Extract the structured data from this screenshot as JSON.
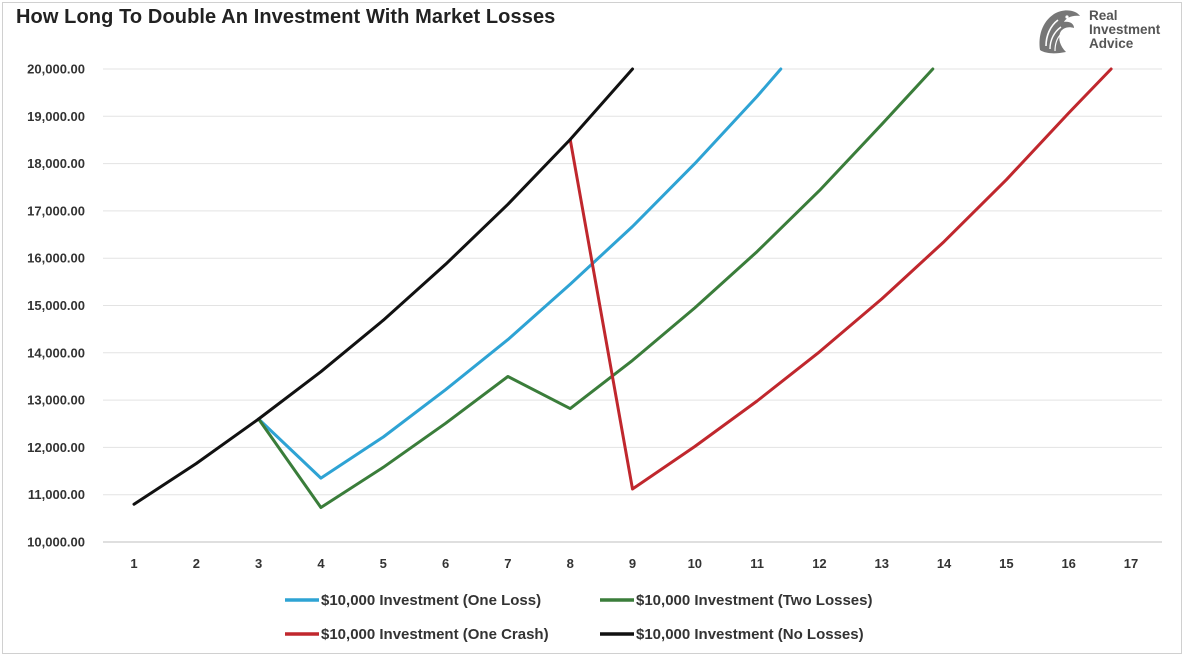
{
  "title": "How Long To Double An Investment With Market Losses",
  "logo": {
    "line1": "Real",
    "line2": "Investment",
    "line3": "Advice",
    "icon": "eagle-head-icon"
  },
  "chart_data": {
    "type": "line",
    "title": "How Long To Double An Investment With Market Losses",
    "xlabel": "",
    "ylabel": "",
    "x": [
      1,
      2,
      3,
      4,
      5,
      6,
      7,
      8,
      9,
      10,
      11,
      12,
      13,
      14,
      15,
      16,
      17
    ],
    "ylim": [
      10000,
      20000
    ],
    "yticks": [
      "10,000.00",
      "11,000.00",
      "12,000.00",
      "13,000.00",
      "14,000.00",
      "15,000.00",
      "16,000.00",
      "17,000.00",
      "18,000.00",
      "19,000.00",
      "20,000.00"
    ],
    "grid": true,
    "legend_position": "bottom",
    "series": [
      {
        "name": "$10,000 Investment (One Loss)",
        "color": "#2ea3d4",
        "x": [
          3,
          4,
          5,
          6,
          7,
          8,
          9,
          10,
          11,
          11.38
        ],
        "values": [
          12600,
          11350,
          12220,
          13220,
          14280,
          15450,
          16670,
          18000,
          19420,
          20000
        ]
      },
      {
        "name": "$10,000 Investment (Two Losses)",
        "color": "#3a7d3a",
        "x": [
          3,
          4,
          5,
          6,
          7,
          8,
          9,
          10,
          11,
          12,
          13,
          13.82
        ],
        "values": [
          12600,
          10730,
          11580,
          12510,
          13500,
          12820,
          13840,
          14950,
          16140,
          17430,
          18830,
          20000
        ]
      },
      {
        "name": "$10,000 Investment (One Crash)",
        "color": "#c0272d",
        "x": [
          8,
          9,
          10,
          11,
          12,
          13,
          14,
          15,
          16,
          16.68
        ],
        "values": [
          18510,
          11120,
          12020,
          12980,
          14020,
          15140,
          16350,
          17660,
          19070,
          20000
        ]
      },
      {
        "name": "$10,000 Investment (No Losses)",
        "color": "#111111",
        "x": [
          1,
          2,
          3,
          4,
          5,
          6,
          7,
          8,
          9
        ],
        "values": [
          10800,
          11660,
          12600,
          13600,
          14690,
          15870,
          17140,
          18510,
          20000
        ]
      }
    ]
  }
}
